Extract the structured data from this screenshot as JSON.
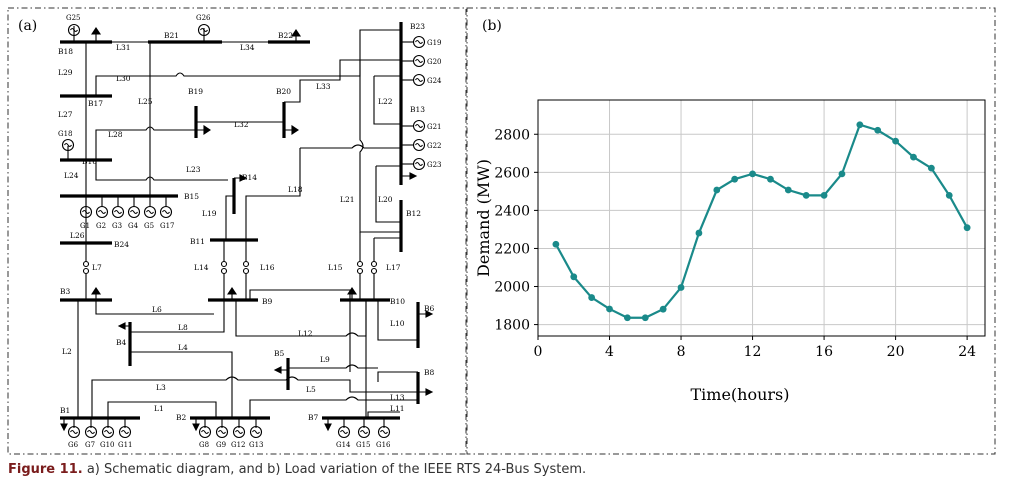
{
  "caption": {
    "label": "Figure 11.",
    "text": " a) Schematic diagram, and b) Load variation of the IEEE RTS 24-Bus System."
  },
  "panel_a": {
    "tag": "(a)",
    "buses": [
      "B1",
      "B2",
      "B3",
      "B4",
      "B5",
      "B6",
      "B7",
      "B8",
      "B9",
      "B10",
      "B11",
      "B12",
      "B13",
      "B14",
      "B15",
      "B16",
      "B17",
      "B18",
      "B19",
      "B20",
      "B21",
      "B22",
      "B23",
      "B24"
    ],
    "lines": [
      "L1",
      "L2",
      "L3",
      "L4",
      "L5",
      "L6",
      "L7",
      "L8",
      "L9",
      "L10",
      "L11",
      "L12",
      "L13",
      "L14",
      "L15",
      "L16",
      "L17",
      "L18",
      "L19",
      "L20",
      "L21",
      "L22",
      "L23",
      "L24",
      "L25",
      "L26",
      "L27",
      "L28",
      "L29",
      "L30",
      "L31",
      "L32",
      "L33",
      "L34"
    ],
    "generators": [
      "G1",
      "G2",
      "G3",
      "G4",
      "G5",
      "G6",
      "G7",
      "G8",
      "G9",
      "G10",
      "G11",
      "G12",
      "G13",
      "G14",
      "G15",
      "G16",
      "G17",
      "G18",
      "G19",
      "G20",
      "G21",
      "G22",
      "G23",
      "G24",
      "G25",
      "G26"
    ]
  },
  "chart_data": {
    "type": "line",
    "tag": "(b)",
    "x": [
      1,
      2,
      3,
      4,
      5,
      6,
      7,
      8,
      9,
      10,
      11,
      12,
      13,
      14,
      15,
      16,
      17,
      18,
      19,
      20,
      21,
      22,
      23,
      24
    ],
    "values": [
      2222,
      2051,
      1942,
      1882,
      1836,
      1836,
      1881,
      1995,
      2281,
      2507,
      2564,
      2592,
      2564,
      2507,
      2479,
      2479,
      2592,
      2850,
      2821,
      2764,
      2680,
      2622,
      2479,
      2309
    ],
    "xlabel": "Time(hours)",
    "ylabel": "Demand (MW)",
    "xlim": [
      0,
      25
    ],
    "ylim": [
      1740,
      2980
    ],
    "xticks": [
      0,
      4,
      8,
      12,
      16,
      20,
      24
    ],
    "yticks": [
      1800,
      2000,
      2200,
      2400,
      2600,
      2800
    ],
    "grid": true,
    "color": "#1a8a8a"
  }
}
